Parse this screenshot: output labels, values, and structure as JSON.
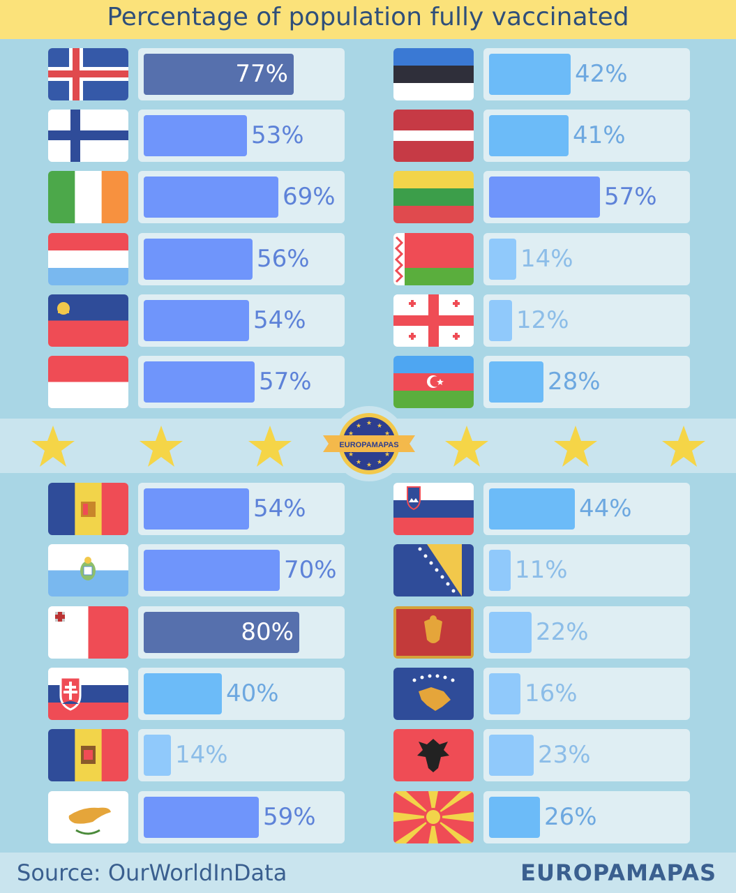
{
  "title": "Percentage of population fully vaccinated",
  "source": "Source: OurWorldInData",
  "brand": "EUROPAMAPAS",
  "badge_text": "EUROPAMAPAS",
  "colors": {
    "header_bg": "#fbe27a",
    "title_text": "#2f4f7a",
    "background": "#a9d6e5",
    "track": "#dfeef3",
    "dark_bar": "#5670ad",
    "mid_bar": "#6f95fb",
    "light_bar": "#6cbbf8",
    "pale_bar": "#90c9fb"
  },
  "chart_data": {
    "type": "bar",
    "orientation": "horizontal",
    "title": "Percentage of population fully vaccinated",
    "unit": "%",
    "xlim": [
      0,
      100
    ],
    "grid": false,
    "legend": "none",
    "categories": [
      "Iceland",
      "Finland",
      "Ireland",
      "Luxembourg",
      "Liechtenstein",
      "Monaco",
      "Estonia",
      "Latvia",
      "Lithuania",
      "Belarus",
      "Georgia",
      "Azerbaijan",
      "Andorra",
      "San Marino",
      "Malta",
      "Slovakia",
      "Moldova",
      "Cyprus",
      "Slovenia",
      "Bosnia and Herzegovina",
      "Montenegro",
      "Kosovo",
      "Albania",
      "North Macedonia"
    ],
    "values": [
      77,
      53,
      69,
      56,
      54,
      57,
      42,
      41,
      57,
      14,
      12,
      28,
      54,
      70,
      80,
      40,
      14,
      59,
      44,
      11,
      22,
      16,
      23,
      26
    ],
    "labels": [
      "77%",
      "53%",
      "69%",
      "56%",
      "54%",
      "57%",
      "42%",
      "41%",
      "57%",
      "14%",
      "12%",
      "28%",
      "54%",
      "70%",
      "80%",
      "40%",
      "14%",
      "59%",
      "44%",
      "11%",
      "22%",
      "16%",
      "23%",
      "26%"
    ],
    "flag_icons": [
      "iceland-flag-icon",
      "finland-flag-icon",
      "ireland-flag-icon",
      "luxembourg-flag-icon",
      "liechtenstein-flag-icon",
      "monaco-flag-icon",
      "estonia-flag-icon",
      "latvia-flag-icon",
      "lithuania-flag-icon",
      "belarus-flag-icon",
      "georgia-flag-icon",
      "azerbaijan-flag-icon",
      "andorra-flag-icon",
      "san-marino-flag-icon",
      "malta-flag-icon",
      "slovakia-flag-icon",
      "moldova-flag-icon",
      "cyprus-flag-icon",
      "slovenia-flag-icon",
      "bosnia-flag-icon",
      "montenegro-flag-icon",
      "kosovo-flag-icon",
      "albania-flag-icon",
      "north-macedonia-flag-icon"
    ],
    "bar_color_by_value": [
      {
        "min": 75,
        "bar": "#5670ad",
        "text": "#ffffff",
        "label_inside": true
      },
      {
        "min": 50,
        "bar": "#6f95fb",
        "text": "#5d82d8",
        "label_inside": false
      },
      {
        "min": 25,
        "bar": "#6cbbf8",
        "text": "#6da8e0",
        "label_inside": false
      },
      {
        "min": 0,
        "bar": "#90c9fb",
        "text": "#8cbde8",
        "label_inside": false
      }
    ]
  }
}
